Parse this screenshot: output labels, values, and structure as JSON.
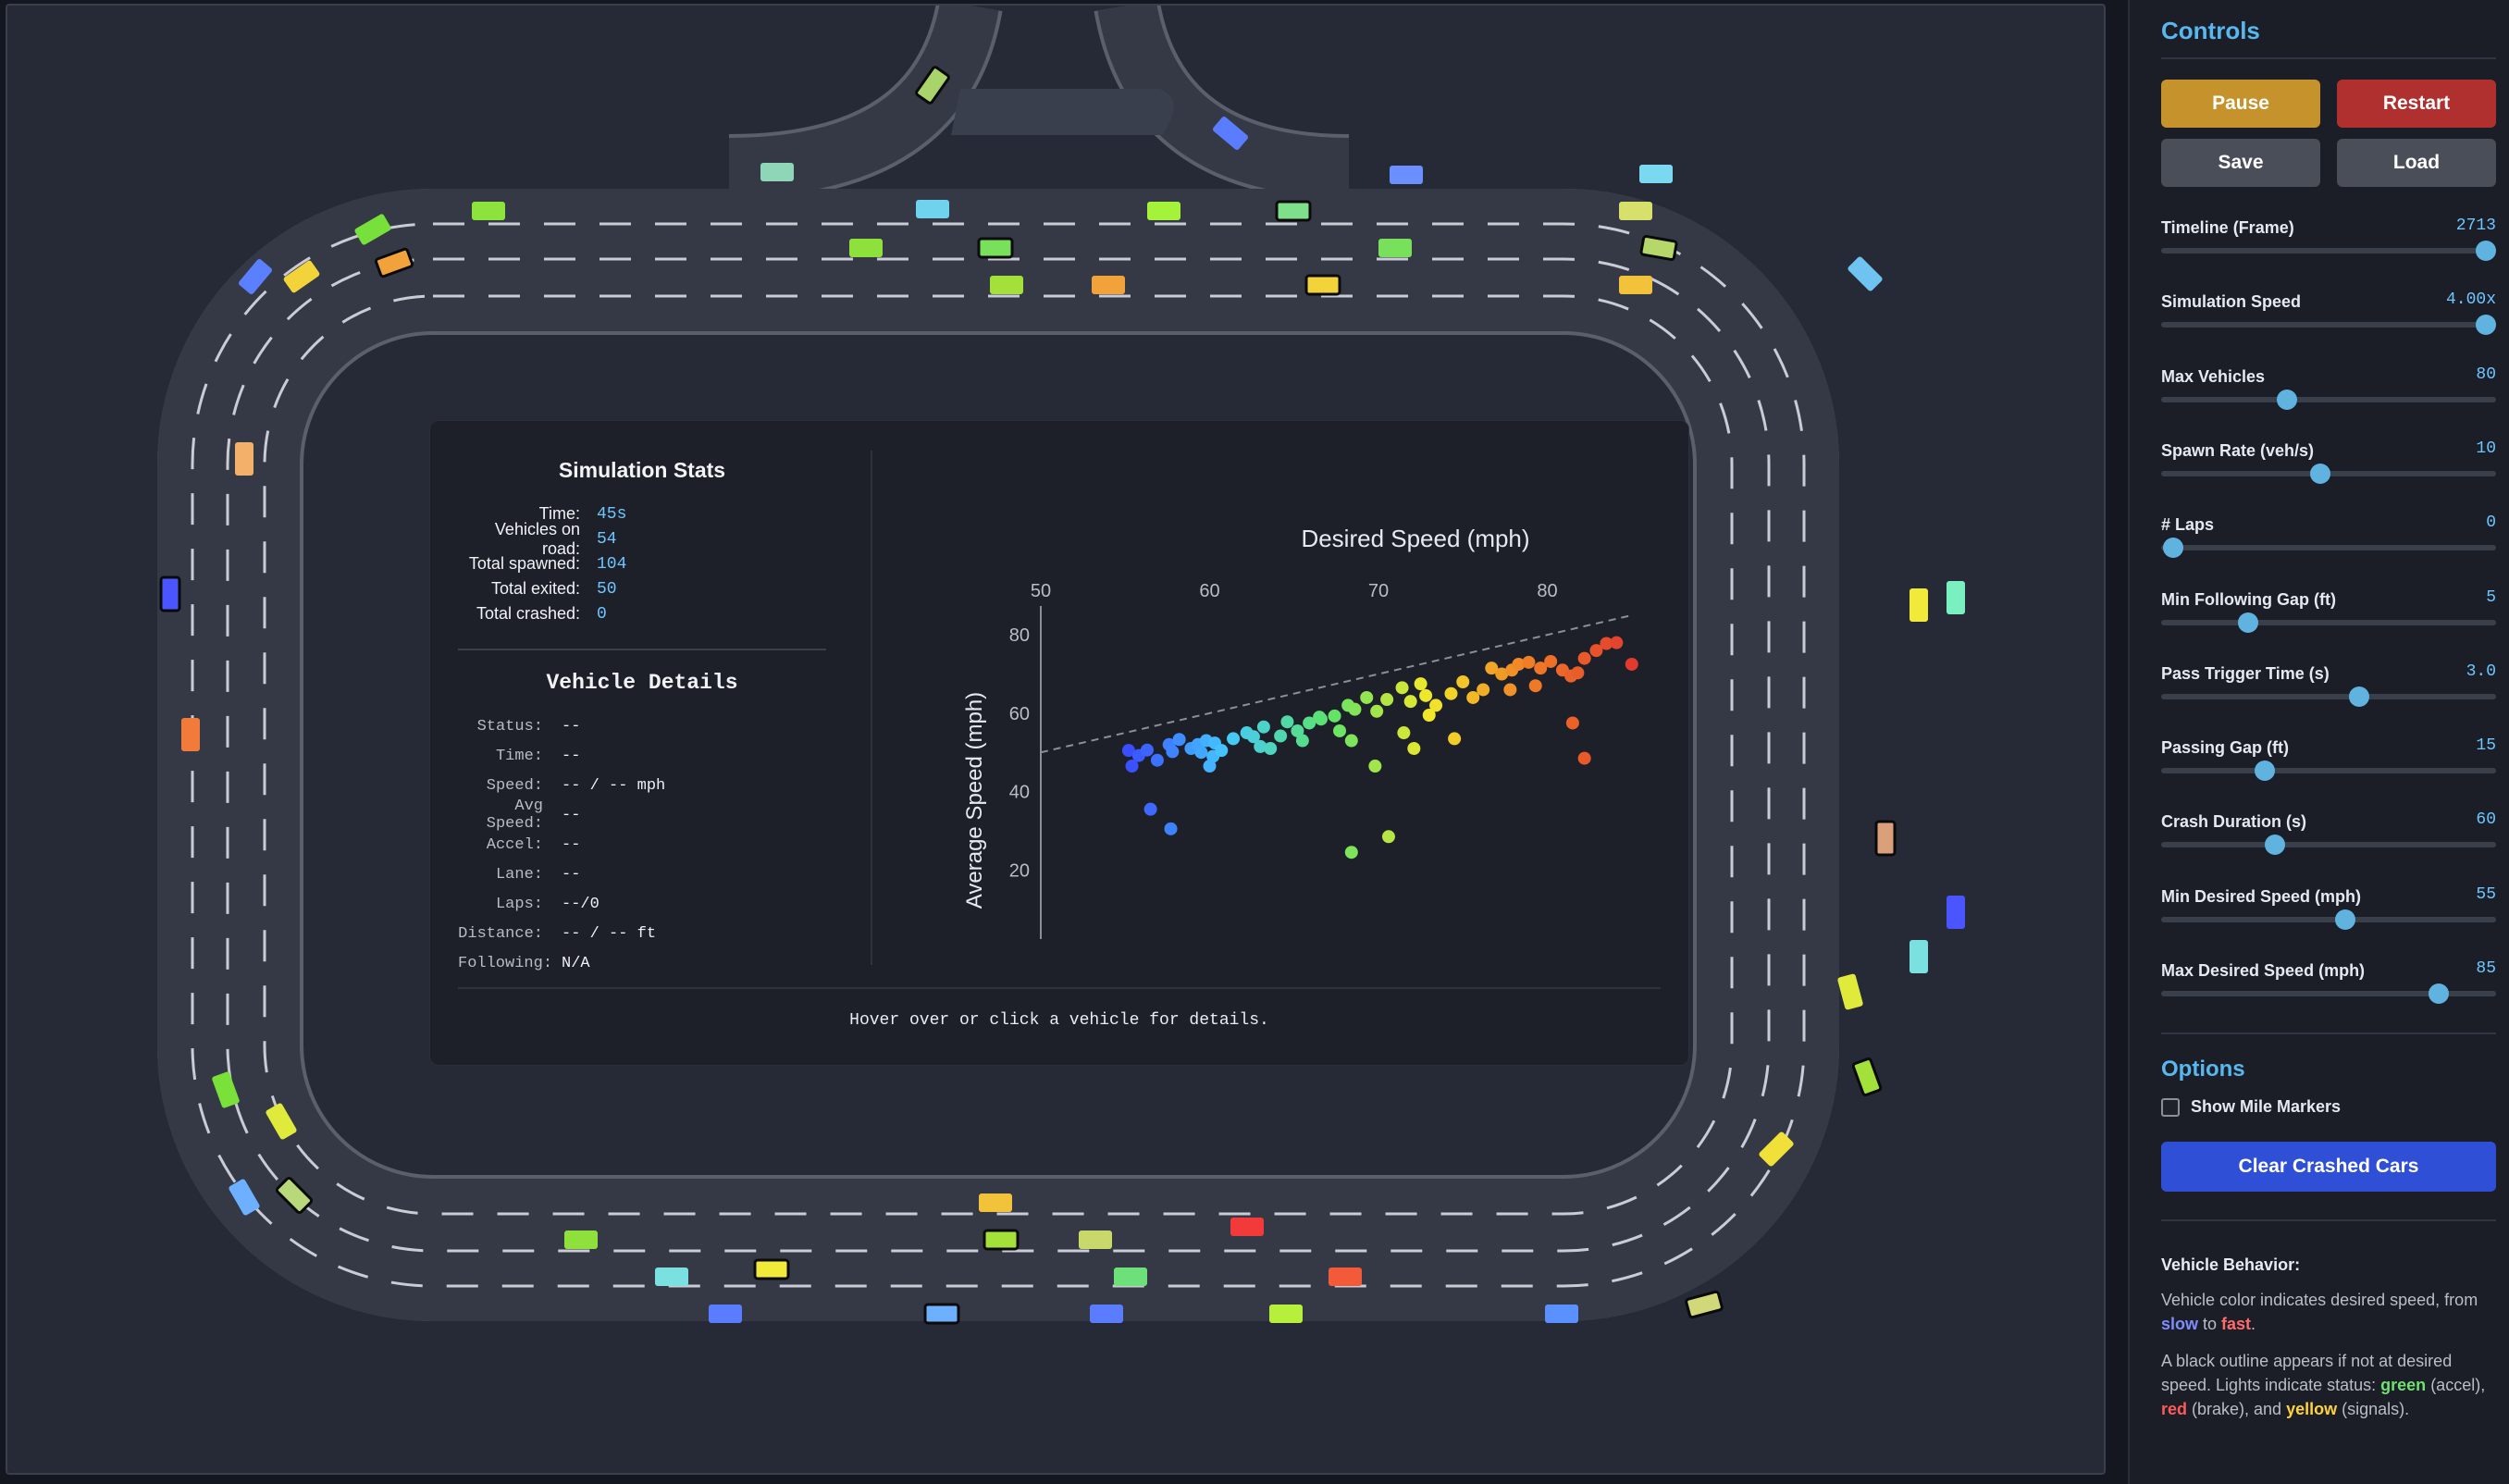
{
  "stats": {
    "title": "Simulation Stats",
    "rows": [
      {
        "label": "Time:",
        "value": "45s"
      },
      {
        "label": "Vehicles on road:",
        "value": "54"
      },
      {
        "label": "Total spawned:",
        "value": "104"
      },
      {
        "label": "Total exited:",
        "value": "50"
      },
      {
        "label": "Total crashed:",
        "value": "0"
      }
    ]
  },
  "vehicle_details": {
    "title": "Vehicle Details",
    "rows": [
      {
        "label": "Status:",
        "value": "--"
      },
      {
        "label": "Time:",
        "value": "--"
      },
      {
        "label": "Speed:",
        "value": "-- / -- mph"
      },
      {
        "label": "Avg Speed:",
        "value": "--"
      },
      {
        "label": "Accel:",
        "value": "--"
      },
      {
        "label": "Lane:",
        "value": "--"
      },
      {
        "label": "Laps:",
        "value": "--/0"
      },
      {
        "label": "Distance:",
        "value": "-- / -- ft"
      },
      {
        "label": "Following:",
        "value": "N/A"
      }
    ],
    "hint": "Hover over or click a vehicle for details."
  },
  "chart_data": {
    "type": "scatter",
    "title": "Desired Speed (mph)",
    "xlabel": "",
    "ylabel": "Average Speed (mph)",
    "x_axis_position": "top",
    "xlim": [
      50,
      90
    ],
    "ylim": [
      0,
      85
    ],
    "x_ticks": [
      50,
      60,
      70,
      80
    ],
    "y_ticks": [
      0,
      20,
      40,
      60,
      80
    ],
    "reference_line": {
      "style": "dashed",
      "from": [
        50,
        50
      ],
      "to": [
        85,
        85
      ]
    },
    "color_scale": [
      "#3a49ff",
      "#45c8ff",
      "#5be36b",
      "#f2e82a",
      "#f07c26",
      "#e23a2e"
    ],
    "points": [
      [
        55.2,
        50.5
      ],
      [
        55.8,
        49.2
      ],
      [
        56.3,
        50.6
      ],
      [
        55.4,
        46.5
      ],
      [
        56.9,
        48.0
      ],
      [
        56.5,
        35.5
      ],
      [
        57.7,
        30.5
      ],
      [
        57.6,
        52.0
      ],
      [
        58.2,
        53.3
      ],
      [
        57.8,
        50.2
      ],
      [
        58.9,
        51.0
      ],
      [
        59.3,
        52.0
      ],
      [
        59.8,
        53.0
      ],
      [
        60.3,
        52.4
      ],
      [
        59.5,
        50.0
      ],
      [
        60.2,
        49.0
      ],
      [
        60.7,
        50.5
      ],
      [
        60.0,
        46.5
      ],
      [
        61.4,
        53.5
      ],
      [
        62.2,
        55.0
      ],
      [
        62.6,
        54.0
      ],
      [
        63.2,
        56.5
      ],
      [
        63.0,
        51.5
      ],
      [
        63.6,
        51.0
      ],
      [
        64.2,
        54.2
      ],
      [
        64.6,
        57.8
      ],
      [
        65.2,
        55.5
      ],
      [
        65.9,
        57.5
      ],
      [
        66.6,
        58.5
      ],
      [
        65.5,
        53.0
      ],
      [
        66.5,
        59.0
      ],
      [
        67.4,
        59.3
      ],
      [
        68.2,
        62.0
      ],
      [
        68.6,
        61.0
      ],
      [
        67.7,
        55.5
      ],
      [
        68.4,
        53.0
      ],
      [
        69.3,
        64.0
      ],
      [
        69.9,
        60.5
      ],
      [
        70.5,
        63.5
      ],
      [
        71.4,
        66.5
      ],
      [
        71.9,
        63.0
      ],
      [
        72.5,
        67.5
      ],
      [
        72.8,
        64.5
      ],
      [
        73.4,
        62.0
      ],
      [
        73.0,
        59.5
      ],
      [
        74.3,
        65.0
      ],
      [
        75.0,
        68.0
      ],
      [
        75.6,
        64.0
      ],
      [
        76.2,
        66.0
      ],
      [
        76.7,
        71.5
      ],
      [
        77.3,
        70.0
      ],
      [
        77.9,
        71.0
      ],
      [
        78.3,
        72.5
      ],
      [
        78.9,
        73.0
      ],
      [
        79.6,
        71.5
      ],
      [
        80.2,
        73.2
      ],
      [
        80.9,
        71.0
      ],
      [
        81.4,
        69.5
      ],
      [
        81.8,
        70.3
      ],
      [
        82.2,
        74.0
      ],
      [
        82.9,
        76.0
      ],
      [
        83.5,
        77.8
      ],
      [
        84.1,
        78.0
      ],
      [
        71.5,
        55.0
      ],
      [
        72.1,
        51.0
      ],
      [
        69.8,
        46.5
      ],
      [
        68.4,
        24.5
      ],
      [
        70.6,
        28.5
      ],
      [
        74.5,
        53.5
      ],
      [
        81.5,
        57.5
      ],
      [
        82.2,
        48.5
      ],
      [
        85.0,
        72.5
      ],
      [
        79.3,
        67.0
      ],
      [
        77.8,
        66.0
      ]
    ]
  },
  "controls": {
    "title": "Controls",
    "buttons": {
      "pause": "Pause",
      "restart": "Restart",
      "save": "Save",
      "load": "Load"
    },
    "sliders": [
      {
        "label": "Timeline (Frame)",
        "value": "2713",
        "fraction": 0.97
      },
      {
        "label": "Simulation Speed",
        "value": "4.00x",
        "fraction": 0.97
      },
      {
        "label": "Max Vehicles",
        "value": "80",
        "fraction": 0.375
      },
      {
        "label": "Spawn Rate (veh/s)",
        "value": "10",
        "fraction": 0.475
      },
      {
        "label": "# Laps",
        "value": "0",
        "fraction": 0.035
      },
      {
        "label": "Min Following Gap (ft)",
        "value": "5",
        "fraction": 0.26
      },
      {
        "label": "Pass Trigger Time (s)",
        "value": "3.0",
        "fraction": 0.59
      },
      {
        "label": "Passing Gap (ft)",
        "value": "15",
        "fraction": 0.31
      },
      {
        "label": "Crash Duration (s)",
        "value": "60",
        "fraction": 0.34
      },
      {
        "label": "Min Desired Speed (mph)",
        "value": "55",
        "fraction": 0.55
      },
      {
        "label": "Max Desired Speed (mph)",
        "value": "85",
        "fraction": 0.83
      }
    ],
    "options_title": "Options",
    "show_mile_markers_label": "Show Mile Markers",
    "clear_crashed_label": "Clear Crashed Cars",
    "behavior_title": "Vehicle Behavior:",
    "behavior_p1_a": "Vehicle color indicates desired speed, from ",
    "behavior_p1_slow": "slow",
    "behavior_p1_b": " to ",
    "behavior_p1_fast": "fast",
    "behavior_p1_c": ".",
    "behavior_p2_a": "A black outline appears if not at desired speed. Lights indicate status: ",
    "behavior_p2_green": "green",
    "behavior_p2_b": " (accel), ",
    "behavior_p2_red": "red",
    "behavior_p2_c": " (brake), and ",
    "behavior_p2_yellow": "yellow",
    "behavior_p2_d": " (signals)."
  },
  "colors": {
    "accent": "#58b7ef",
    "pause": "#c5922b",
    "restart": "#b02f2f",
    "neutral_button": "#4a4e59",
    "clear_button": "#2f4fd6"
  }
}
